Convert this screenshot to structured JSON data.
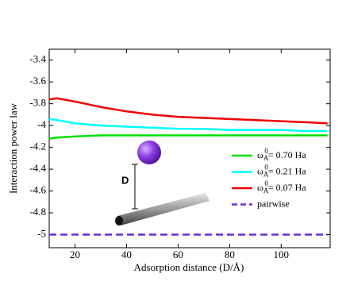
{
  "chart_data": {
    "type": "line",
    "x_label": "Adsorption distance (D/Å)",
    "y_label": "Interaction power law",
    "annotation": "D",
    "x": [
      10,
      13,
      20,
      30,
      40,
      50,
      60,
      70,
      80,
      90,
      100,
      110,
      118
    ],
    "series": [
      {
        "name": "ωA0= 0.70 Ha",
        "color": "#00e000",
        "dashed": false,
        "values": [
          -4.12,
          -4.11,
          -4.1,
          -4.09,
          -4.09,
          -4.09,
          -4.09,
          -4.09,
          -4.09,
          -4.09,
          -4.09,
          -4.09,
          -4.09
        ]
      },
      {
        "name": "ωA0= 0.21 Ha",
        "color": "#00ffff",
        "dashed": false,
        "values": [
          -3.94,
          -3.95,
          -3.98,
          -4.0,
          -4.01,
          -4.02,
          -4.03,
          -4.03,
          -4.04,
          -4.04,
          -4.04,
          -4.05,
          -4.05
        ]
      },
      {
        "name": "ωA0= 0.07 Ha",
        "color": "#ee0000",
        "dashed": false,
        "values": [
          -3.76,
          -3.75,
          -3.78,
          -3.83,
          -3.87,
          -3.9,
          -3.92,
          -3.93,
          -3.94,
          -3.95,
          -3.96,
          -3.97,
          -3.98
        ]
      },
      {
        "name": "pairwise",
        "color": "#6a2bd9",
        "dashed": true,
        "values": [
          -5,
          -5,
          -5,
          -5,
          -5,
          -5,
          -5,
          -5,
          -5,
          -5,
          -5,
          -5,
          -5
        ]
      }
    ],
    "xlim": [
      10,
      119
    ],
    "ylim": [
      -5.12,
      -3.3
    ],
    "xticks": [
      20,
      40,
      60,
      80,
      100
    ],
    "yticks": [
      -3.4,
      -3.6,
      -3.8,
      -4,
      -4.2,
      -4.4,
      -4.6,
      -4.8,
      -5
    ],
    "legend": "right"
  }
}
